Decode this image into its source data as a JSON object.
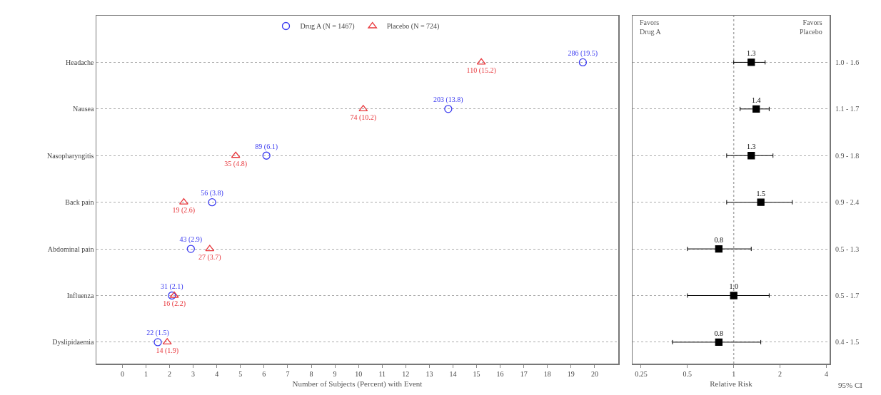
{
  "chart_data": [
    {
      "type": "scatter",
      "orientation": "horizontal",
      "categories": [
        "Headache",
        "Nausea",
        "Nasopharyngitis",
        "Back pain",
        "Abdominal pain",
        "Influenza",
        "Dyslipidaemia"
      ],
      "series": [
        {
          "name": "Drug A (N = 1467)",
          "color": "#3b3bf0",
          "marker": "circle",
          "values": [
            19.5,
            13.8,
            6.1,
            3.8,
            2.9,
            2.1,
            1.5
          ],
          "value_labels": [
            "286 (19.5)",
            "203 (13.8)",
            "89 (6.1)",
            "56 (3.8)",
            "43 (2.9)",
            "31 (2.1)",
            "22 (1.5)"
          ]
        },
        {
          "name": "Placebo (N = 724)",
          "color": "#e8383d",
          "marker": "triangle",
          "values": [
            15.2,
            10.2,
            4.8,
            2.6,
            3.7,
            2.2,
            1.9
          ],
          "value_labels": [
            "110 (15.2)",
            "74 (10.2)",
            "35 (4.8)",
            "19 (2.6)",
            "27 (3.7)",
            "16 (2.2)",
            "14 (1.9)"
          ]
        }
      ],
      "xlim": [
        -1.1,
        21
      ],
      "xticks": [
        0,
        1,
        2,
        3,
        4,
        5,
        6,
        7,
        8,
        9,
        10,
        11,
        12,
        13,
        14,
        15,
        16,
        17,
        18,
        19,
        20
      ],
      "xlabel": "Number of Subjects (Percent) with Event",
      "legend": "top",
      "grid": "y"
    },
    {
      "type": "scatter",
      "orientation": "horizontal",
      "categories": [
        null,
        null,
        null,
        null,
        null,
        null,
        null
      ],
      "y2_categories": [
        "1.0 - 1.6",
        "1.1 - 1.7",
        "0.9 - 1.8",
        "0.9 - 2.4",
        "0.5 - 1.3",
        "0.5 - 1.7",
        "0.4 - 1.5"
      ],
      "series": [
        {
          "color": "#000000",
          "values": [
            1.3,
            1.4,
            1.3,
            1.5,
            0.8,
            1.0,
            0.8
          ],
          "value_labels": [
            "1.3",
            "1.4",
            "1.3",
            "1.5",
            "0.8",
            "1.0",
            "0.8"
          ],
          "errors": [
            [
              1.0,
              1.6
            ],
            [
              1.1,
              1.7
            ],
            [
              0.9,
              1.8
            ],
            [
              0.9,
              2.4
            ],
            [
              0.5,
              1.3
            ],
            [
              0.5,
              1.7
            ],
            [
              0.4,
              1.5
            ]
          ]
        }
      ],
      "marker": "square",
      "log": "x",
      "xlim": [
        0.22,
        4.2
      ],
      "xticks": [
        0.25,
        0.5,
        1,
        2,
        4
      ],
      "xlabel": "Relative Risk",
      "y2label": "95% CI",
      "ref_lines": [
        {
          "axis": "x",
          "value": 1,
          "line_style": "dotted"
        }
      ],
      "annotations": [
        "Favors Drug A",
        "Favors Placebo"
      ],
      "tick_labels": "x",
      "grid": "y"
    }
  ]
}
